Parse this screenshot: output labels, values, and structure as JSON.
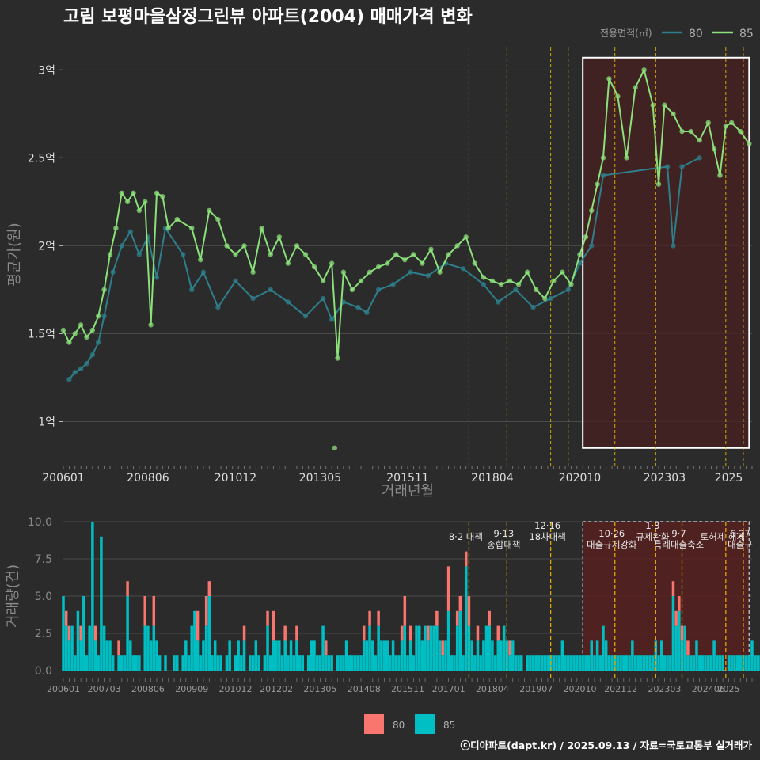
{
  "title": "고림 보평마을삼정그린뷰 아파트(2004) 매매가격 변화",
  "caption": "ⓒ디아파트(dapt.kr) / 2025.09.13 / 자료=국토교통부 실거래가",
  "colors": {
    "background": "#2b2b2b",
    "series_80_price": "#2e7f8c",
    "series_85_price": "#8be07a",
    "series_80_volume": "#f8766d",
    "series_85_volume": "#00bfc4",
    "policy_line": "#e6c300",
    "highlight_fill": "#4a2020"
  },
  "chart_data": [
    {
      "type": "line",
      "name": "price",
      "legend_title": "전용면적(㎡)",
      "legend_position": "top-right",
      "xlabel": "거래년월",
      "ylabel": "평균가(원)",
      "x_range": [
        "2006-01",
        "2025-09"
      ],
      "ylim": [
        0.75,
        3.15
      ],
      "y_ticks": [
        1,
        1.5,
        2,
        2.5,
        3
      ],
      "y_tick_labels": [
        "1억",
        "1.5억",
        "2억",
        "2.5억",
        "3억"
      ],
      "x_tick_labels": [
        "200601",
        "200806",
        "201012",
        "201305",
        "201511",
        "201804",
        "202010",
        "202303",
        "2025"
      ],
      "grid": true,
      "highlight_region": {
        "from": "2020-11",
        "to": "2025-08",
        "ymin": 0.85,
        "ymax": 3.07
      },
      "policy_dates": [
        "2017-08",
        "2018-09",
        "2019-12",
        "2020-06",
        "2021-10",
        "2022-12",
        "2023-09",
        "2024-12",
        "2025-06"
      ],
      "series": [
        {
          "name": "80",
          "points": [
            [
              "2006-03",
              1.24
            ],
            [
              "2006-05",
              1.28
            ],
            [
              "2006-07",
              1.3
            ],
            [
              "2006-09",
              1.33
            ],
            [
              "2006-11",
              1.38
            ],
            [
              "2007-01",
              1.45
            ],
            [
              "2007-03",
              1.6
            ],
            [
              "2007-06",
              1.85
            ],
            [
              "2007-09",
              2.0
            ],
            [
              "2007-12",
              2.08
            ],
            [
              "2008-03",
              1.95
            ],
            [
              "2008-06",
              2.05
            ],
            [
              "2008-09",
              1.82
            ],
            [
              "2008-12",
              2.1
            ],
            [
              "2009-06",
              1.95
            ],
            [
              "2009-09",
              1.75
            ],
            [
              "2010-01",
              1.85
            ],
            [
              "2010-06",
              1.65
            ],
            [
              "2010-12",
              1.8
            ],
            [
              "2011-06",
              1.7
            ],
            [
              "2011-12",
              1.75
            ],
            [
              "2012-06",
              1.68
            ],
            [
              "2012-12",
              1.6
            ],
            [
              "2013-06",
              1.7
            ],
            [
              "2013-09",
              1.58
            ],
            [
              "2014-01",
              1.68
            ],
            [
              "2014-06",
              1.65
            ],
            [
              "2014-09",
              1.62
            ],
            [
              "2015-01",
              1.75
            ],
            [
              "2015-06",
              1.78
            ],
            [
              "2015-12",
              1.85
            ],
            [
              "2016-06",
              1.83
            ],
            [
              "2016-12",
              1.9
            ],
            [
              "2017-06",
              1.87
            ],
            [
              "2018-01",
              1.78
            ],
            [
              "2018-06",
              1.68
            ],
            [
              "2018-12",
              1.75
            ],
            [
              "2019-06",
              1.65
            ],
            [
              "2019-12",
              1.7
            ],
            [
              "2020-06",
              1.75
            ],
            [
              "2020-10",
              1.9
            ],
            [
              "2021-02",
              2.0
            ],
            [
              "2021-06",
              2.4
            ],
            [
              "2023-04",
              2.45
            ],
            [
              "2023-06",
              2.0
            ],
            [
              "2023-09",
              2.45
            ],
            [
              "2024-03",
              2.5
            ]
          ]
        },
        {
          "name": "85",
          "points": [
            [
              "2006-01",
              1.52
            ],
            [
              "2006-03",
              1.45
            ],
            [
              "2006-05",
              1.5
            ],
            [
              "2006-07",
              1.55
            ],
            [
              "2006-09",
              1.48
            ],
            [
              "2006-11",
              1.52
            ],
            [
              "2007-01",
              1.6
            ],
            [
              "2007-03",
              1.75
            ],
            [
              "2007-05",
              1.95
            ],
            [
              "2007-07",
              2.1
            ],
            [
              "2007-09",
              2.3
            ],
            [
              "2007-11",
              2.25
            ],
            [
              "2008-01",
              2.3
            ],
            [
              "2008-03",
              2.2
            ],
            [
              "2008-05",
              2.25
            ],
            [
              "2008-07",
              1.55
            ],
            [
              "2008-09",
              2.3
            ],
            [
              "2008-11",
              2.28
            ],
            [
              "2009-01",
              2.1
            ],
            [
              "2009-04",
              2.15
            ],
            [
              "2009-09",
              2.1
            ],
            [
              "2009-12",
              1.92
            ],
            [
              "2010-03",
              2.2
            ],
            [
              "2010-06",
              2.15
            ],
            [
              "2010-09",
              2.0
            ],
            [
              "2010-12",
              1.95
            ],
            [
              "2011-03",
              2.0
            ],
            [
              "2011-06",
              1.85
            ],
            [
              "2011-09",
              2.1
            ],
            [
              "2011-12",
              1.95
            ],
            [
              "2012-03",
              2.05
            ],
            [
              "2012-06",
              1.9
            ],
            [
              "2012-09",
              2.0
            ],
            [
              "2012-12",
              1.95
            ],
            [
              "2013-03",
              1.88
            ],
            [
              "2013-06",
              1.8
            ],
            [
              "2013-09",
              1.9
            ],
            [
              "2013-11",
              1.36
            ],
            [
              "2014-01",
              1.85
            ],
            [
              "2014-04",
              1.75
            ],
            [
              "2014-07",
              1.8
            ],
            [
              "2014-10",
              1.85
            ],
            [
              "2015-01",
              1.88
            ],
            [
              "2015-04",
              1.9
            ],
            [
              "2015-07",
              1.95
            ],
            [
              "2015-10",
              1.92
            ],
            [
              "2016-01",
              1.95
            ],
            [
              "2016-04",
              1.9
            ],
            [
              "2016-07",
              1.98
            ],
            [
              "2016-10",
              1.85
            ],
            [
              "2017-01",
              1.95
            ],
            [
              "2017-04",
              2.0
            ],
            [
              "2017-07",
              2.05
            ],
            [
              "2017-10",
              1.9
            ],
            [
              "2018-01",
              1.82
            ],
            [
              "2018-04",
              1.8
            ],
            [
              "2018-07",
              1.78
            ],
            [
              "2018-10",
              1.8
            ],
            [
              "2019-01",
              1.78
            ],
            [
              "2019-04",
              1.85
            ],
            [
              "2019-07",
              1.75
            ],
            [
              "2019-10",
              1.7
            ],
            [
              "2020-01",
              1.8
            ],
            [
              "2020-04",
              1.85
            ],
            [
              "2020-07",
              1.78
            ],
            [
              "2020-10",
              1.95
            ],
            [
              "2020-12",
              2.05
            ],
            [
              "2021-02",
              2.2
            ],
            [
              "2021-04",
              2.35
            ],
            [
              "2021-06",
              2.5
            ],
            [
              "2021-08",
              2.95
            ],
            [
              "2021-11",
              2.85
            ],
            [
              "2022-02",
              2.5
            ],
            [
              "2022-05",
              2.9
            ],
            [
              "2022-08",
              3.0
            ],
            [
              "2022-11",
              2.8
            ],
            [
              "2023-01",
              2.35
            ],
            [
              "2023-03",
              2.8
            ],
            [
              "2023-06",
              2.75
            ],
            [
              "2023-09",
              2.65
            ],
            [
              "2023-12",
              2.65
            ],
            [
              "2024-03",
              2.6
            ],
            [
              "2024-06",
              2.7
            ],
            [
              "2024-08",
              2.55
            ],
            [
              "2024-10",
              2.4
            ],
            [
              "2024-12",
              2.68
            ],
            [
              "2025-02",
              2.7
            ],
            [
              "2025-05",
              2.65
            ],
            [
              "2025-08",
              2.58
            ]
          ]
        }
      ],
      "outlier_points": [
        [
          "2013-10",
          0.85
        ]
      ]
    },
    {
      "type": "bar",
      "name": "volume",
      "stacked": true,
      "xlabel": "",
      "ylabel": "거래량(건)",
      "ylim": [
        0,
        10
      ],
      "y_ticks": [
        0,
        2.5,
        5,
        7.5,
        10
      ],
      "y_tick_labels": [
        "0.0",
        "2.5",
        "5.0",
        "7.5",
        "10.0"
      ],
      "x_tick_labels": [
        "200601",
        "200703",
        "200806",
        "200909",
        "201012",
        "201202",
        "201305",
        "201408",
        "201511",
        "201701",
        "201804",
        "201907",
        "202010",
        "202112",
        "202303",
        "202406",
        "2025"
      ],
      "legend_position": "bottom",
      "legend": [
        "80",
        "85"
      ],
      "highlight_region": {
        "from": "2020-11",
        "to": "2025-08"
      },
      "policy_labels": [
        {
          "date": "2017-08",
          "line1": "",
          "line2": "8·2 대책"
        },
        {
          "date": "2018-09",
          "line1": "9·13",
          "line2": "종합대책"
        },
        {
          "date": "2019-12",
          "line1": "12·16",
          "line2": "18차대책"
        },
        {
          "date": "2021-10",
          "line1": "10·26",
          "line2": "대출규제강화"
        },
        {
          "date": "2022-12",
          "line1": "1·3",
          "line2": "규제완화"
        },
        {
          "date": "2023-09",
          "line1": "9·7",
          "line2": "특례대출축소"
        },
        {
          "date": "2024-12",
          "line1": "",
          "line2": "토허제 해제"
        },
        {
          "date": "2025-06",
          "line1": "6·27",
          "line2": "대출규"
        }
      ],
      "series_85_monthly": [
        5,
        3,
        2,
        3,
        1,
        4,
        2,
        5,
        1,
        3,
        10,
        2,
        1,
        9,
        3,
        2,
        2,
        1,
        0,
        1,
        1,
        1,
        5,
        2,
        1,
        1,
        1,
        0,
        3,
        3,
        2,
        3,
        2,
        1,
        0,
        1,
        0,
        0,
        1,
        1,
        0,
        1,
        2,
        1,
        3,
        4,
        2,
        1,
        2,
        3,
        5,
        1,
        2,
        1,
        1,
        0,
        1,
        2,
        0,
        1,
        2,
        1,
        2,
        0,
        1,
        1,
        2,
        1,
        0,
        1,
        3,
        1,
        2,
        2,
        2,
        1,
        2,
        1,
        2,
        1,
        2,
        1,
        1,
        0,
        1,
        2,
        2,
        1,
        1,
        3,
        1,
        1,
        1,
        0,
        1,
        1,
        1,
        2,
        1,
        1,
        1,
        1,
        1,
        2,
        2,
        3,
        2,
        1,
        3,
        2,
        2,
        2,
        1,
        2,
        1,
        1,
        2,
        3,
        1,
        2,
        1,
        3,
        3,
        2,
        3,
        2,
        3,
        3,
        3,
        2,
        1,
        2,
        4,
        1,
        1,
        3,
        4,
        1,
        7,
        3,
        2,
        1,
        2,
        1,
        2,
        3,
        3,
        2,
        1,
        2,
        2,
        3,
        2,
        1,
        2,
        1,
        1,
        1,
        0,
        1,
        1,
        1,
        1,
        1,
        1,
        1,
        1,
        1,
        1,
        1,
        1,
        2,
        1,
        1,
        1,
        1,
        1,
        1,
        1,
        1,
        1,
        2,
        1,
        2,
        1,
        3,
        2,
        1,
        1,
        1,
        1,
        1,
        1,
        1,
        1,
        2,
        1,
        1,
        1,
        1,
        1,
        1,
        1,
        2,
        1,
        2,
        1,
        1,
        1,
        5,
        3,
        4,
        2,
        3,
        1,
        1,
        1,
        2,
        1,
        1,
        1,
        1,
        1,
        2,
        1,
        1,
        1,
        0,
        1,
        1,
        1,
        1,
        1,
        1,
        1,
        1,
        2,
        1,
        1,
        1,
        1,
        1,
        1,
        1,
        1,
        1,
        1,
        2,
        1,
        1,
        2,
        1,
        1,
        1,
        1,
        1,
        1,
        3,
        1,
        1,
        1,
        1,
        1,
        1,
        1,
        1,
        1,
        1,
        2,
        1,
        1,
        1,
        2
      ],
      "series_80_monthly": [
        0,
        1,
        1,
        0,
        0,
        0,
        1,
        0,
        0,
        0,
        0,
        1,
        0,
        0,
        0,
        0,
        0,
        0,
        0,
        1,
        0,
        0,
        1,
        0,
        0,
        0,
        0,
        0,
        2,
        0,
        0,
        2,
        0,
        0,
        0,
        0,
        0,
        0,
        0,
        0,
        0,
        0,
        0,
        0,
        0,
        0,
        2,
        0,
        0,
        2,
        1,
        0,
        0,
        0,
        0,
        0,
        0,
        0,
        0,
        0,
        0,
        0,
        1,
        0,
        0,
        0,
        0,
        0,
        0,
        0,
        1,
        0,
        2,
        0,
        0,
        0,
        1,
        0,
        0,
        0,
        1,
        0,
        0,
        0,
        0,
        0,
        0,
        0,
        0,
        0,
        1,
        0,
        0,
        0,
        0,
        0,
        0,
        0,
        0,
        0,
        0,
        0,
        0,
        1,
        0,
        1,
        0,
        0,
        1,
        0,
        0,
        0,
        0,
        0,
        0,
        0,
        1,
        2,
        0,
        1,
        0,
        0,
        0,
        0,
        0,
        1,
        0,
        0,
        1,
        0,
        1,
        0,
        3,
        0,
        0,
        1,
        1,
        0,
        1,
        2,
        0,
        0,
        1,
        0,
        0,
        0,
        1,
        0,
        0,
        1,
        0,
        0,
        0,
        1,
        0,
        0,
        0,
        0,
        0,
        0,
        0,
        0,
        0,
        0,
        0,
        0,
        0,
        0,
        0,
        0,
        0,
        0,
        0,
        0,
        0,
        0,
        0,
        0,
        0,
        0,
        0,
        0,
        0,
        0,
        0,
        0,
        0,
        0,
        0,
        0,
        0,
        0,
        0,
        0,
        0,
        0,
        0,
        0,
        0,
        0,
        0,
        0,
        0,
        0,
        0,
        0,
        0,
        0,
        0,
        1,
        1,
        1,
        1,
        0,
        1,
        0,
        0,
        0,
        0,
        0,
        0,
        0,
        0,
        0,
        0,
        0,
        0,
        0,
        0,
        0,
        0,
        0,
        0,
        0,
        0,
        0,
        0,
        0,
        0,
        0,
        0,
        0,
        0,
        0,
        0,
        0,
        0,
        0,
        0,
        0,
        0,
        0,
        0,
        0,
        0,
        0,
        0,
        2,
        0,
        0,
        0,
        0,
        0,
        0,
        0,
        0,
        0,
        0,
        0,
        0,
        0,
        0,
        0
      ]
    }
  ]
}
